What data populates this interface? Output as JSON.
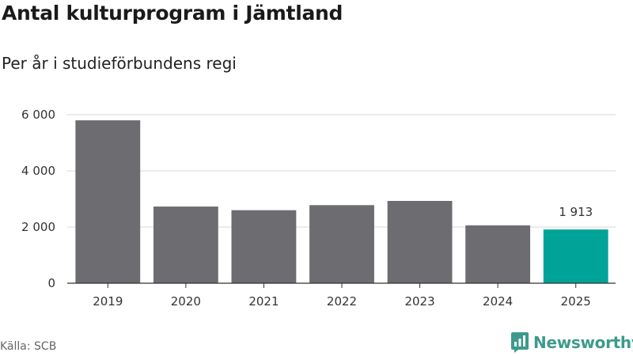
{
  "chart_data": {
    "type": "bar",
    "title": "Antal kulturprogram i Jämtland",
    "subtitle": "Per år i studieförbundens regi",
    "xlabel": "",
    "ylabel": "",
    "categories": [
      "2019",
      "2020",
      "2021",
      "2022",
      "2023",
      "2024",
      "2025"
    ],
    "values": [
      5800,
      2730,
      2600,
      2780,
      2930,
      2060,
      1913
    ],
    "highlight_index": 6,
    "data_labels": [
      {
        "index": 6,
        "text": "1 913"
      }
    ],
    "ylim": [
      0,
      6000
    ],
    "yticks": [
      0,
      2000,
      4000,
      6000
    ],
    "ytick_labels": [
      "0",
      "2 000",
      "4 000",
      "6 000"
    ],
    "grid": true,
    "colors": {
      "bar": "#6d6c70",
      "highlight": "#00a398",
      "grid": "#d9d9d9",
      "axis": "#333333"
    }
  },
  "footer": {
    "source": "Källa: SCB",
    "brand": "Newsworthy"
  },
  "brand_color": "#3d9a8c"
}
